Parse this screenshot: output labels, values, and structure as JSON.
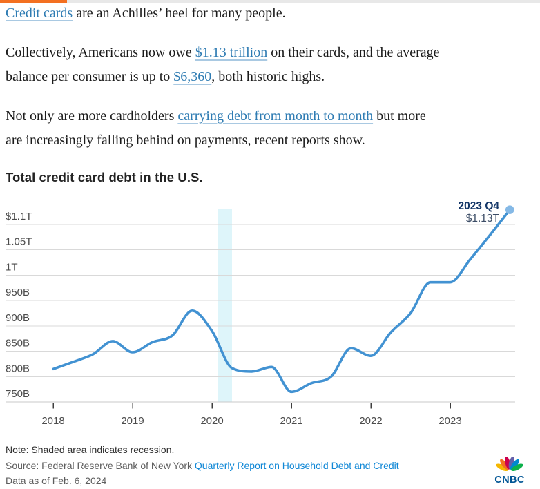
{
  "colors": {
    "accent_orange": "#f37021",
    "track_gray": "#e8e8e8",
    "body_text": "#1b1b1b",
    "link": "#2f7cb3",
    "link_underline": "#a9c9e2",
    "title": "#232323",
    "axis_text": "#4c4c4c",
    "gridline": "#d9d9d9",
    "axis_line": "#c9c9c9",
    "tick": "#3f3f3f",
    "line": "#4292d2",
    "band": "#def5fa",
    "dot": "#85b9e6",
    "annotation_label": "#153768",
    "annotation_value": "#3c4d66",
    "note_text": "#303030",
    "muted_text": "#5d5d5d",
    "footer_link": "#0f87d6",
    "logo_navy": "#005594"
  },
  "article": {
    "p1": {
      "link1": "Credit cards",
      "t1": " are an Achilles’ heel for many people."
    },
    "p2": {
      "t1": "Collectively, Americans now owe ",
      "link1": "$1.13 trillion",
      "t2": " on their cards, and the average",
      "t3": "balance per consumer is up to ",
      "link2": "$6,360",
      "t4": ", both historic highs."
    },
    "p3": {
      "t1": "Not only are more cardholders ",
      "link1": "carrying debt from month to month",
      "t2": " but more",
      "t3": "are increasingly falling behind on payments, recent reports show."
    }
  },
  "chart_data": {
    "type": "line",
    "title": "Total credit card debt in the U.S.",
    "unit": "billions of U.S. dollars",
    "x_tick_labels": [
      "2018",
      "2019",
      "2020",
      "2021",
      "2022",
      "2023"
    ],
    "y_tick_labels": [
      "$1.1T",
      "1.05T",
      "1T",
      "950B",
      "900B",
      "850B",
      "800B",
      "750B"
    ],
    "y_tick_values": [
      1100,
      1050,
      1000,
      950,
      900,
      850,
      800,
      750
    ],
    "ylim": [
      750,
      1100
    ],
    "grid": "horizontal",
    "legend": "none",
    "series": [
      {
        "name": "Total credit card debt",
        "x": [
          "2018 Q1",
          "2018 Q2",
          "2018 Q3",
          "2018 Q4",
          "2019 Q1",
          "2019 Q2",
          "2019 Q3",
          "2019 Q4",
          "2020 Q1",
          "2020 Q2",
          "2020 Q3",
          "2020 Q4",
          "2021 Q1",
          "2021 Q2",
          "2021 Q3",
          "2021 Q4",
          "2022 Q1",
          "2022 Q2",
          "2022 Q3",
          "2022 Q4",
          "2023 Q1",
          "2023 Q2",
          "2023 Q3",
          "2023 Q4"
        ],
        "values": [
          815,
          829,
          844,
          870,
          848,
          868,
          881,
          930,
          890,
          817,
          810,
          819,
          770,
          787,
          800,
          856,
          841,
          887,
          925,
          986,
          986,
          1031,
          1079,
          1129
        ]
      }
    ],
    "annotation": {
      "label": "2023 Q4",
      "value": "$1.13T"
    },
    "recession_band": {
      "start": "2020 Q1 (Feb 2020)",
      "end": "2020 Q2 (Apr 2020)",
      "meaning": "Shaded area indicates recession"
    }
  },
  "footer": {
    "note": "Note: Shaded area indicates recession.",
    "source_prefix": "Source: Federal Reserve Bank of New York ",
    "source_link": "Quarterly Report on Household Debt and Credit",
    "data_as_of": "Data as of Feb. 6, 2024",
    "logo_text": "CNBC"
  }
}
